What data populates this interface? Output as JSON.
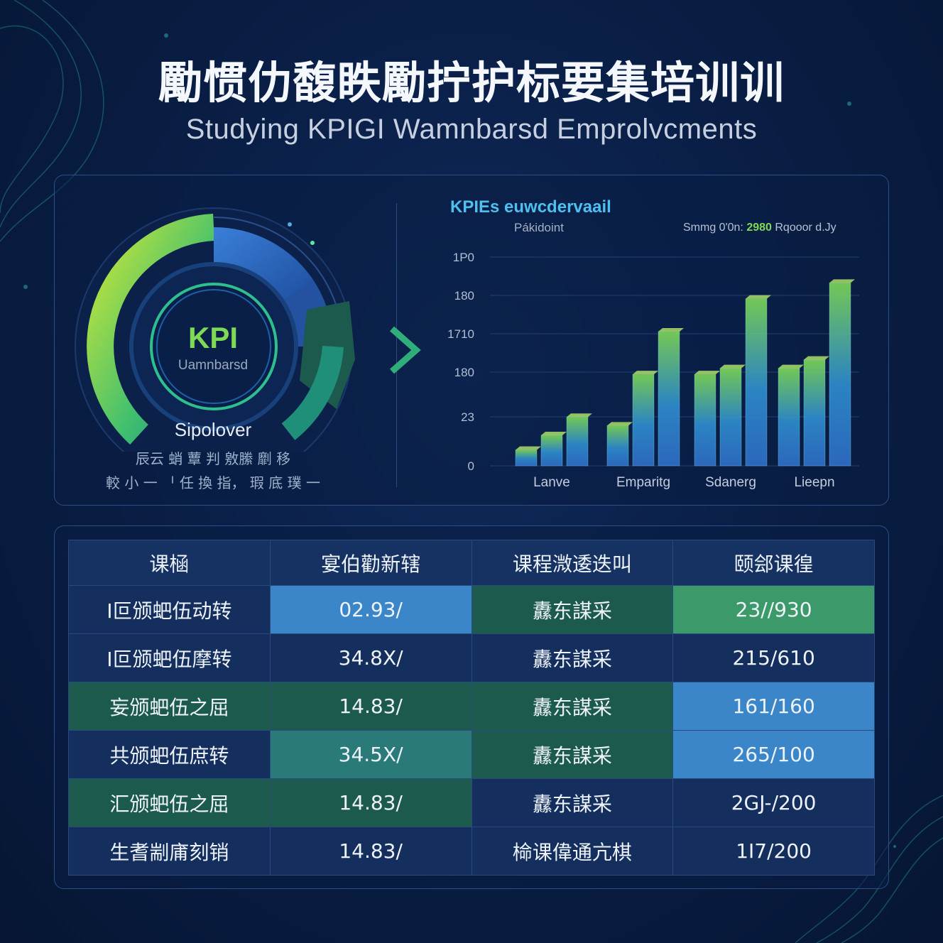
{
  "header": {
    "title": "勵惯仂馥眣勵拧护标要集培训训",
    "subtitle": "Studying KPIGI Wamnbarsd Emprolvcments"
  },
  "gauge": {
    "center_title": "KPI",
    "center_subtitle": "Uamnbarsd",
    "label": "Sipolover",
    "line1": "辰云 蛸 蕈 判 敫縢 劘 移",
    "line2": "較 小 一 ᅵ 任 換 指， 瑕 底 璞 一",
    "accent_green": "#7ed957",
    "accent_blue": "#2f6fc9"
  },
  "chart_header": {
    "title": "KPIEs euwcdervaail",
    "subtitle": "Pákidoint",
    "legend_prefix": "Smmg 0'0n:",
    "legend_value": "2980",
    "legend_suffix": "Rqooor d.Jy"
  },
  "chart_data": {
    "type": "bar",
    "yticks": [
      "0",
      "23",
      "180",
      "1710",
      "180",
      "1P0"
    ],
    "categories": [
      "Lanve",
      "Emparitg",
      "Sdanerg",
      "Lieepn"
    ],
    "series": [
      {
        "values": [
          13,
          33,
          75,
          80
        ]
      },
      {
        "values": [
          25,
          75,
          80,
          87
        ]
      },
      {
        "values": [
          40,
          110,
          137,
          150
        ]
      }
    ],
    "ylim": [
      0,
      170
    ],
    "colors": [
      "#2f6fc9",
      "#7ed957"
    ]
  },
  "table": {
    "headers": [
      "课㮀",
      "宴伯勸新辖",
      "课程溦逶迭叫",
      "颐郐课徨"
    ],
    "rows": [
      [
        "Ⅰ叵颁蚆伍动转",
        "02.93/",
        "纛东謀采",
        "23//930"
      ],
      [
        "Ⅰ叵颁蚆伍摩转",
        "34.8Ⅹ/",
        "纛东謀采",
        "215/610"
      ],
      [
        "妄颁蚆伍之屈",
        "14.83/",
        "纛东謀采",
        "161/160"
      ],
      [
        "共颁蚆伍庶转",
        "34.5Ⅹ/",
        "纛东謀采",
        "265/100"
      ],
      [
        "汇颁蚆伍之屈",
        "14.83/",
        "纛东謀采",
        "2GJ-/200"
      ],
      [
        "生耆剬庯刻销",
        "14.83/",
        "椧课偉通亢棋",
        "1Ⅰ7/200"
      ]
    ],
    "row_colors": [
      [
        "#142e5e",
        "#3a86c8",
        "#1d5a4e",
        "#3c9a6a"
      ],
      [
        "#142e5e",
        "#142e5e",
        "#142e5e",
        "#142e5e"
      ],
      [
        "#1d5a4e",
        "#1d5a4e",
        "#1d5a4e",
        "#3a86c8"
      ],
      [
        "#142e5e",
        "#2a7a7a",
        "#1d5a4e",
        "#3a86c8"
      ],
      [
        "#1d5a4e",
        "#1d5a4e",
        "#142e5e",
        "#142e5e"
      ],
      [
        "#142e5e",
        "#142e5e",
        "#142e5e",
        "#142e5e"
      ]
    ]
  }
}
